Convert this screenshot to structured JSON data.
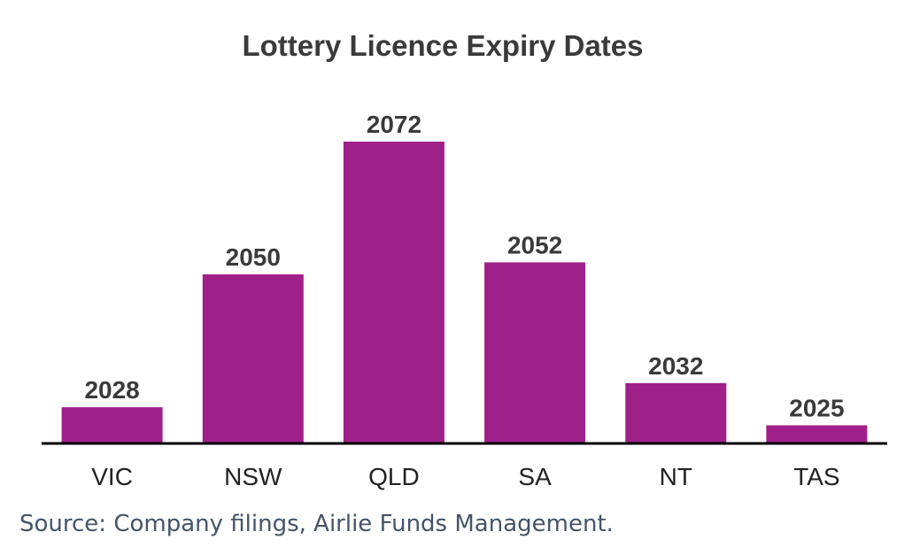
{
  "chart_data": {
    "type": "bar",
    "title": "Lottery Licence Expiry Dates",
    "categories": [
      "VIC",
      "NSW",
      "QLD",
      "SA",
      "NT",
      "TAS"
    ],
    "values": [
      2028,
      2050,
      2072,
      2052,
      2032,
      2025
    ],
    "xlabel": "",
    "ylabel": "",
    "ylim": [
      2022,
      2072
    ],
    "grid": false,
    "legend": "none",
    "bar_color": "#a0208a",
    "source": "Source: Company filings, Airlie Funds Management."
  }
}
